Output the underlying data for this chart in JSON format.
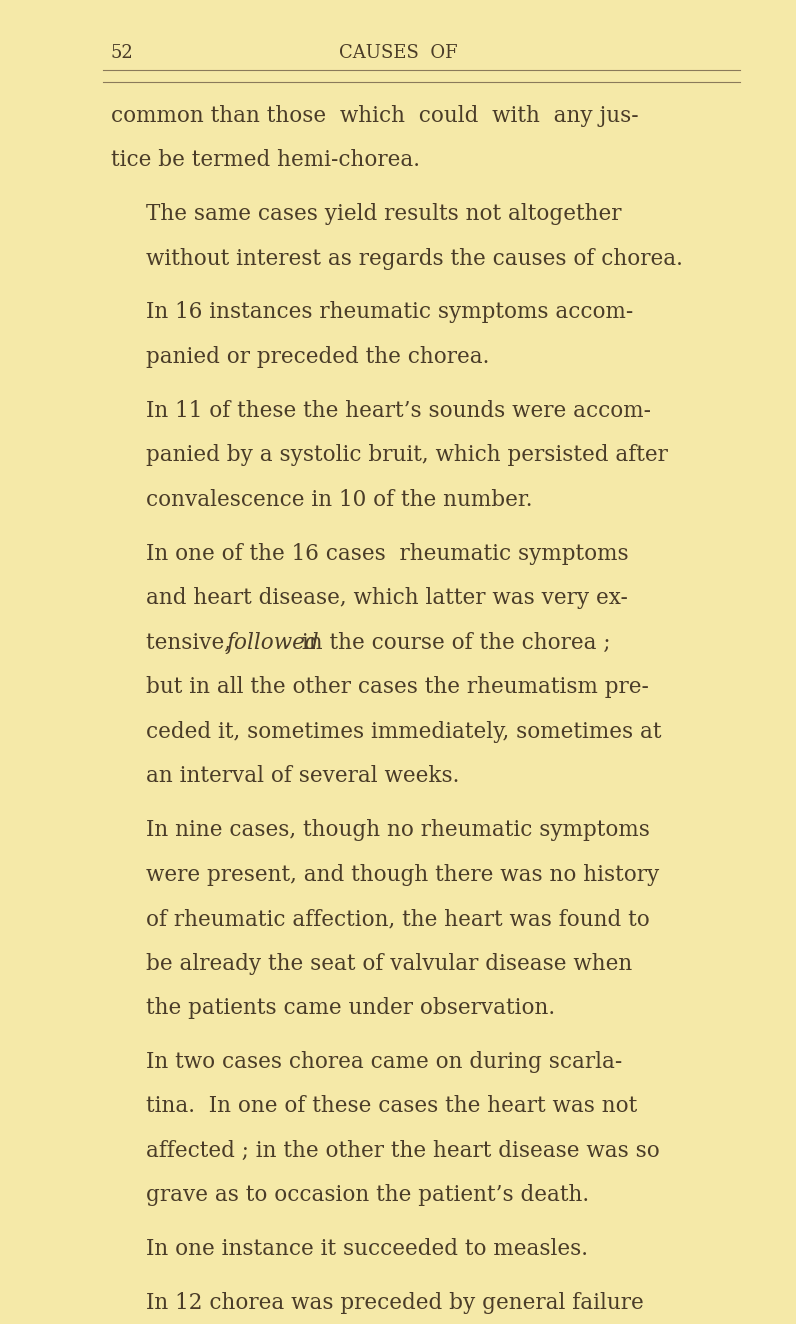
{
  "background_color": "#f5e9a8",
  "page_number": "52",
  "header_title": "CAUSES  OF",
  "line_color": "#8a7a5a",
  "text_color": "#4a3c28",
  "font_size_header": 13,
  "font_size_body": 15.5,
  "paragraphs": [
    {
      "indent": false,
      "text": "common than those  which  could  with  any jus-\ntice be termed hemi-chorea."
    },
    {
      "indent": true,
      "text": "The same cases yield results not altogether\nwithout interest as regards the causes of chorea."
    },
    {
      "indent": true,
      "text": "In 16 instances rheumatic symptoms accom-\npanied or preceded the chorea."
    },
    {
      "indent": true,
      "text": "In 11 of these the heart’s sounds were accom-\npanied by a systolic bruit, which persisted after\nconvalescence in 10 of the number."
    },
    {
      "indent": true,
      "text": "In one of the 16 cases  rheumatic symptoms\nand heart disease, which latter was very ex-\ntensive, {followed} in the course of the chorea ;\nbut in all the other cases the rheumatism pre-\nceded it, sometimes immediately, sometimes at\nan interval of several weeks."
    },
    {
      "indent": true,
      "text": "In nine cases, though no rheumatic symptoms\nwere present, and though there was no history\nof rheumatic affection, the heart was found to\nbe already the seat of valvular disease when\nthe patients came under observation."
    },
    {
      "indent": true,
      "text": "In two cases chorea came on during scarla-\ntina.  In one of these cases the heart was not\naffected ; in the other the heart disease was so\ngrave as to occasion the patient’s death."
    },
    {
      "indent": true,
      "text": "In one instance it succeeded to measles."
    },
    {
      "indent": true,
      "text": "In 12 chorea was preceded by general failure"
    }
  ]
}
